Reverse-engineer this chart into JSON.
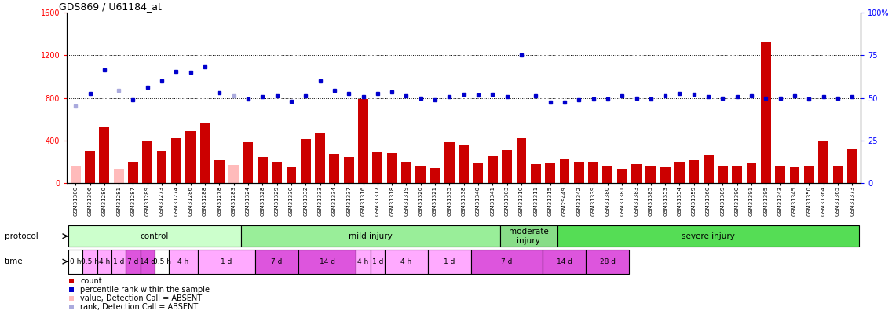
{
  "title": "GDS869 / U61184_at",
  "samples": [
    "GSM31300",
    "GSM31306",
    "GSM31280",
    "GSM31281",
    "GSM31287",
    "GSM31289",
    "GSM31273",
    "GSM31274",
    "GSM31286",
    "GSM31288",
    "GSM31278",
    "GSM31283",
    "GSM31324",
    "GSM31328",
    "GSM31329",
    "GSM31330",
    "GSM31332",
    "GSM31333",
    "GSM31334",
    "GSM31337",
    "GSM31316",
    "GSM31317",
    "GSM31318",
    "GSM31319",
    "GSM31320",
    "GSM31321",
    "GSM31335",
    "GSM31338",
    "GSM31340",
    "GSM31341",
    "GSM31303",
    "GSM31310",
    "GSM31311",
    "GSM31315",
    "GSM29449",
    "GSM31342",
    "GSM31339",
    "GSM31380",
    "GSM31381",
    "GSM31383",
    "GSM31385",
    "GSM31353",
    "GSM31354",
    "GSM31359",
    "GSM31360",
    "GSM31389",
    "GSM31390",
    "GSM31391",
    "GSM31395",
    "GSM31343",
    "GSM31345",
    "GSM31350",
    "GSM31364",
    "GSM31365",
    "GSM31373"
  ],
  "count_values": [
    160,
    300,
    520,
    130,
    200,
    390,
    300,
    420,
    490,
    560,
    210,
    170,
    380,
    240,
    195,
    150,
    410,
    470,
    270,
    245,
    790,
    285,
    280,
    195,
    165,
    140,
    380,
    350,
    190,
    250,
    310,
    420,
    175,
    180,
    220,
    195,
    195,
    155,
    135,
    175,
    155,
    145,
    200,
    215,
    260,
    155,
    155,
    180,
    1330,
    155,
    145,
    165,
    390,
    155,
    320
  ],
  "count_is_absent": [
    true,
    false,
    false,
    true,
    false,
    false,
    false,
    false,
    false,
    false,
    false,
    true,
    false,
    false,
    false,
    false,
    false,
    false,
    false,
    false,
    false,
    false,
    false,
    false,
    false,
    false,
    false,
    false,
    false,
    false,
    false,
    false,
    false,
    false,
    false,
    false,
    false,
    false,
    false,
    false,
    false,
    false,
    false,
    false,
    false,
    false,
    false,
    false,
    false,
    false,
    false,
    false,
    false,
    false,
    false
  ],
  "rank_values": [
    720,
    840,
    1060,
    870,
    780,
    900,
    960,
    1050,
    1040,
    1090,
    850,
    820,
    790,
    810,
    820,
    770,
    820,
    960,
    870,
    840,
    810,
    840,
    855,
    820,
    795,
    780,
    815,
    830,
    825,
    830,
    815,
    1200,
    820,
    760,
    760,
    780,
    790,
    790,
    820,
    800,
    790,
    820,
    840,
    835,
    815,
    800,
    810,
    820,
    795,
    800,
    820,
    790,
    815,
    800,
    810
  ],
  "rank_is_absent": [
    true,
    false,
    false,
    true,
    false,
    false,
    false,
    false,
    false,
    false,
    false,
    true,
    false,
    false,
    false,
    false,
    false,
    false,
    false,
    false,
    false,
    false,
    false,
    false,
    false,
    false,
    false,
    false,
    false,
    false,
    false,
    false,
    false,
    false,
    false,
    false,
    false,
    false,
    false,
    false,
    false,
    false,
    false,
    false,
    false,
    false,
    false,
    false,
    false,
    false,
    false,
    false,
    false,
    false,
    false
  ],
  "protocol_groups": [
    {
      "label": "control",
      "start": 0,
      "end": 12,
      "color": "#ccffcc"
    },
    {
      "label": "mild injury",
      "start": 12,
      "end": 30,
      "color": "#99ee99"
    },
    {
      "label": "moderate\ninjury",
      "start": 30,
      "end": 34,
      "color": "#88dd88"
    },
    {
      "label": "severe injury",
      "start": 34,
      "end": 55,
      "color": "#55dd55"
    }
  ],
  "time_groups": [
    {
      "label": "0 h",
      "start": 0,
      "end": 1,
      "color": "#ffffff"
    },
    {
      "label": "0.5 h",
      "start": 1,
      "end": 2,
      "color": "#ffaaff"
    },
    {
      "label": "4 h",
      "start": 2,
      "end": 3,
      "color": "#ffaaff"
    },
    {
      "label": "1 d",
      "start": 3,
      "end": 4,
      "color": "#ffaaff"
    },
    {
      "label": "7 d",
      "start": 4,
      "end": 5,
      "color": "#dd55dd"
    },
    {
      "label": "14 d",
      "start": 5,
      "end": 6,
      "color": "#dd55dd"
    },
    {
      "label": "0.5 h",
      "start": 6,
      "end": 7,
      "color": "#ffffff"
    },
    {
      "label": "4 h",
      "start": 7,
      "end": 9,
      "color": "#ffaaff"
    },
    {
      "label": "1 d",
      "start": 9,
      "end": 13,
      "color": "#ffaaff"
    },
    {
      "label": "7 d",
      "start": 13,
      "end": 16,
      "color": "#dd55dd"
    },
    {
      "label": "14 d",
      "start": 16,
      "end": 20,
      "color": "#dd55dd"
    },
    {
      "label": "4 h",
      "start": 20,
      "end": 21,
      "color": "#ffaaff"
    },
    {
      "label": "1 d",
      "start": 21,
      "end": 22,
      "color": "#ffaaff"
    },
    {
      "label": "4 h",
      "start": 22,
      "end": 25,
      "color": "#ffaaff"
    },
    {
      "label": "1 d",
      "start": 25,
      "end": 28,
      "color": "#ffaaff"
    },
    {
      "label": "7 d",
      "start": 28,
      "end": 33,
      "color": "#dd55dd"
    },
    {
      "label": "14 d",
      "start": 33,
      "end": 36,
      "color": "#dd55dd"
    },
    {
      "label": "28 d",
      "start": 36,
      "end": 39,
      "color": "#dd55dd"
    }
  ],
  "ylim_left": [
    0,
    1600
  ],
  "ylim_right": [
    0,
    100
  ],
  "yticks_left": [
    0,
    400,
    800,
    1200,
    1600
  ],
  "yticks_right": [
    0,
    25,
    50,
    75,
    100
  ],
  "bar_color_present": "#cc0000",
  "bar_color_absent": "#ffbbbb",
  "dot_color_present": "#0000cc",
  "dot_color_absent": "#aaaadd"
}
